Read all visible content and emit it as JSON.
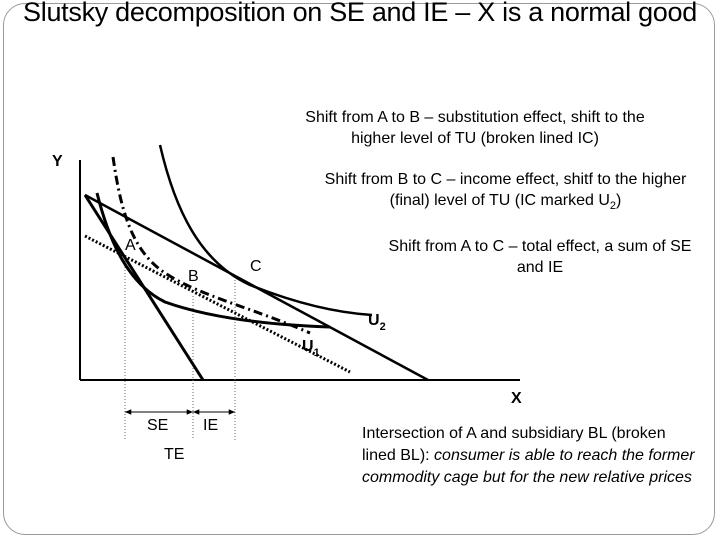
{
  "title": "Slutsky decomposition on SE and IE – X is a normal good",
  "notes": {
    "substitution": "Shift from A to B – substitution effect, shift to the higher level of TU (broken lined IC)",
    "income_pre": "Shift from B to C – income effect, shitf to the higher (final) level of TU (IC marked U",
    "income_sub": "2",
    "income_post": ")",
    "total": "Shift from A to C – total effect, a sum of SE and IE",
    "intersection_plain": "Intersection of A and subsidiary BL (broken lined BL): ",
    "intersection_italic": "consumer is able to reach the former commodity cage but for the new relative prices"
  },
  "axes": {
    "y": "Y",
    "x": "X"
  },
  "points": {
    "a": "A",
    "b": "B",
    "c": "C"
  },
  "curves": {
    "u1": "U",
    "u1_sub": "1",
    "u2": "U",
    "u2_sub": "2"
  },
  "effects": {
    "se": "SE",
    "ie": "IE",
    "te": "TE"
  }
}
